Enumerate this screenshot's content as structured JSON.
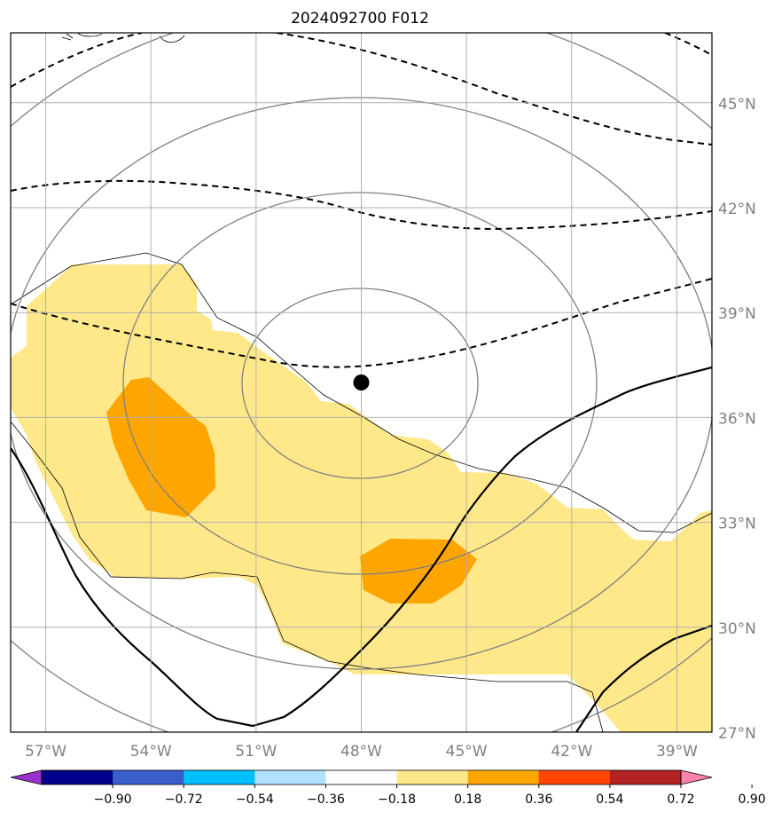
{
  "title": "2024092700 F012",
  "map": {
    "projection": "rectilinear",
    "lon_range": [
      -58,
      -38
    ],
    "lat_range": [
      27,
      47
    ],
    "lon_ticks": [
      {
        "value": -57,
        "label": "57°W"
      },
      {
        "value": -54,
        "label": "54°W"
      },
      {
        "value": -51,
        "label": "51°W"
      },
      {
        "value": -48,
        "label": "48°W"
      },
      {
        "value": -45,
        "label": "45°W"
      },
      {
        "value": -42,
        "label": "42°W"
      },
      {
        "value": -39,
        "label": "39°W"
      }
    ],
    "lat_ticks": [
      {
        "value": 27,
        "label": "27°N"
      },
      {
        "value": 30,
        "label": "30°N"
      },
      {
        "value": 33,
        "label": "33°N"
      },
      {
        "value": 36,
        "label": "36°N"
      },
      {
        "value": 39,
        "label": "39°N"
      },
      {
        "value": 42,
        "label": "42°N"
      },
      {
        "value": 45,
        "label": "45°N"
      }
    ],
    "gridlines": true,
    "storm_center": {
      "lon": -48.0,
      "lat": 37.0
    },
    "range_rings_color": "#808080",
    "contour_color": "#000000"
  },
  "colorbar": {
    "ticks": [
      "−0.90",
      "−0.72",
      "−0.54",
      "−0.36",
      "−0.18",
      "0.18",
      "0.36",
      "0.54",
      "0.72",
      "0.90"
    ],
    "colors": [
      "#9932cc",
      "#00008b",
      "#3a5fcd",
      "#00bfff",
      "#b0e2ff",
      "#ffffff",
      "#ffe88a",
      "#ffa500",
      "#ff4500",
      "#b22222",
      "#ff82ab"
    ],
    "extend": "both",
    "placement": "bottom"
  }
}
